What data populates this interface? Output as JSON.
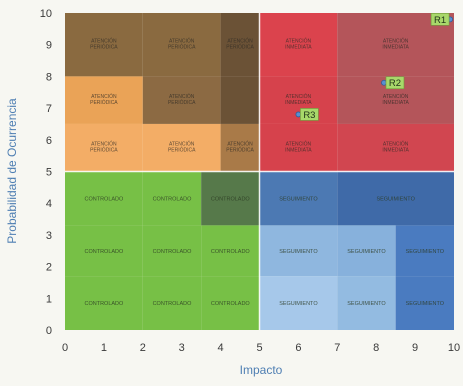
{
  "chart_data": {
    "type": "heatmap",
    "title": "",
    "xlabel": "Impacto",
    "ylabel": "Probabilidad de Ocurrencia",
    "xlim": [
      0,
      10
    ],
    "ylim": [
      0,
      10
    ],
    "x_ticks": [
      "0",
      "1",
      "2",
      "3",
      "4",
      "5",
      "6",
      "7",
      "8",
      "9",
      "10"
    ],
    "y_ticks": [
      "0",
      "1",
      "2",
      "3",
      "4",
      "5",
      "6",
      "7",
      "8",
      "9",
      "10"
    ],
    "grid": true,
    "quadrant_colors": {
      "top_left": "#e8a05a",
      "top_right": "#d9404a",
      "bottom_left": "#76c043",
      "bottom_right": "#4a7fc0"
    },
    "cells": [
      {
        "x": [
          0,
          2
        ],
        "y": [
          8,
          10
        ],
        "label": "ATENCIÓN PERIÓDICA",
        "color": "#8a6a40"
      },
      {
        "x": [
          2,
          4
        ],
        "y": [
          8,
          10
        ],
        "label": "ATENCIÓN PERIÓDICA",
        "color": "#8a6a40"
      },
      {
        "x": [
          4,
          5
        ],
        "y": [
          8,
          10
        ],
        "label": "ATENCIÓN PERIÓDICA",
        "color": "#6b5236"
      },
      {
        "x": [
          0,
          2
        ],
        "y": [
          6.5,
          8
        ],
        "label": "ATENCIÓN PERIÓDICA",
        "color": "#eaa357"
      },
      {
        "x": [
          2,
          4
        ],
        "y": [
          6.5,
          8
        ],
        "label": "ATENCIÓN PERIÓDICA",
        "color": "#8c6a43"
      },
      {
        "x": [
          4,
          5
        ],
        "y": [
          6.5,
          8
        ],
        "label": "",
        "color": "#6b5236"
      },
      {
        "x": [
          0,
          2
        ],
        "y": [
          5,
          6.5
        ],
        "label": "ATENCIÓN PERIÓDICA",
        "color": "#f3ad66"
      },
      {
        "x": [
          2,
          4
        ],
        "y": [
          5,
          6.5
        ],
        "label": "ATENCIÓN PERIÓDICA",
        "color": "#f3ad66"
      },
      {
        "x": [
          4,
          5
        ],
        "y": [
          5,
          6.5
        ],
        "label": "ATENCIÓN PERIÓDICA",
        "color": "#a97a48"
      },
      {
        "x": [
          5,
          7
        ],
        "y": [
          8,
          10
        ],
        "label": "ATENCIÓN INMEDIATA",
        "color": "#db434d"
      },
      {
        "x": [
          7,
          10
        ],
        "y": [
          8,
          10
        ],
        "label": "ATENCIÓN INMEDIATA",
        "color": "#b4555a"
      },
      {
        "x": [
          5,
          7
        ],
        "y": [
          6.5,
          8
        ],
        "label": "ATENCIÓN INMEDIATA",
        "color": "#d6424c"
      },
      {
        "x": [
          7,
          10
        ],
        "y": [
          6.5,
          8
        ],
        "label": "ATENCIÓN INMEDIATA",
        "color": "#b4555a"
      },
      {
        "x": [
          5,
          7
        ],
        "y": [
          5,
          6.5
        ],
        "label": "ATENCIÓN INMEDIATA",
        "color": "#d6424c"
      },
      {
        "x": [
          7,
          10
        ],
        "y": [
          5,
          6.5
        ],
        "label": "ATENCIÓN INMEDIATA",
        "color": "#d14650"
      },
      {
        "x": [
          0,
          2
        ],
        "y": [
          3.3,
          5
        ],
        "label": "CONTROLADO",
        "color": "#77c046"
      },
      {
        "x": [
          2,
          3.5
        ],
        "y": [
          3.3,
          5
        ],
        "label": "CONTROLADO",
        "color": "#77c046"
      },
      {
        "x": [
          3.5,
          5
        ],
        "y": [
          3.3,
          5
        ],
        "label": "CONTROLADO",
        "color": "#56794a"
      },
      {
        "x": [
          0,
          2
        ],
        "y": [
          1.7,
          3.3
        ],
        "label": "CONTROLADO",
        "color": "#77c046"
      },
      {
        "x": [
          2,
          3.5
        ],
        "y": [
          1.7,
          3.3
        ],
        "label": "CONTROLADO",
        "color": "#77c046"
      },
      {
        "x": [
          3.5,
          5
        ],
        "y": [
          1.7,
          3.3
        ],
        "label": "CONTROLADO",
        "color": "#77c046"
      },
      {
        "x": [
          0,
          2
        ],
        "y": [
          0,
          1.7
        ],
        "label": "CONTROLADO",
        "color": "#77c046"
      },
      {
        "x": [
          2,
          3.5
        ],
        "y": [
          0,
          1.7
        ],
        "label": "CONTROLADO",
        "color": "#77c046"
      },
      {
        "x": [
          3.5,
          5
        ],
        "y": [
          0,
          1.7
        ],
        "label": "CONTROLADO",
        "color": "#77c046"
      },
      {
        "x": [
          5,
          7
        ],
        "y": [
          3.3,
          5
        ],
        "label": "SEGUIMIENTO",
        "color": "#4c79b3"
      },
      {
        "x": [
          7,
          10
        ],
        "y": [
          3.3,
          5
        ],
        "label": "SEGUIMIENTO",
        "color": "#3f6aa8"
      },
      {
        "x": [
          5,
          7
        ],
        "y": [
          1.7,
          3.3
        ],
        "label": "SEGUIMIENTO",
        "color": "#8fb7df"
      },
      {
        "x": [
          7,
          8.5
        ],
        "y": [
          1.7,
          3.3
        ],
        "label": "SEGUIMIENTO",
        "color": "#87b1dc"
      },
      {
        "x": [
          8.5,
          10
        ],
        "y": [
          1.7,
          3.3
        ],
        "label": "SEGUIMIENTO",
        "color": "#4a7bc0"
      },
      {
        "x": [
          5,
          7
        ],
        "y": [
          0,
          1.7
        ],
        "label": "SEGUIMIENTO",
        "color": "#a6c8ea"
      },
      {
        "x": [
          7,
          8.5
        ],
        "y": [
          0,
          1.7
        ],
        "label": "SEGUIMIENTO",
        "color": "#93bbe1"
      },
      {
        "x": [
          8.5,
          10
        ],
        "y": [
          0,
          1.7
        ],
        "label": "SEGUIMIENTO",
        "color": "#4a7bc0"
      }
    ],
    "points": [
      {
        "name": "R1",
        "x": 9.9,
        "y": 9.8
      },
      {
        "name": "R2",
        "x": 8.2,
        "y": 7.8
      },
      {
        "name": "R3",
        "x": 6.0,
        "y": 6.8
      }
    ],
    "point_label_color": "#a8d86a"
  }
}
